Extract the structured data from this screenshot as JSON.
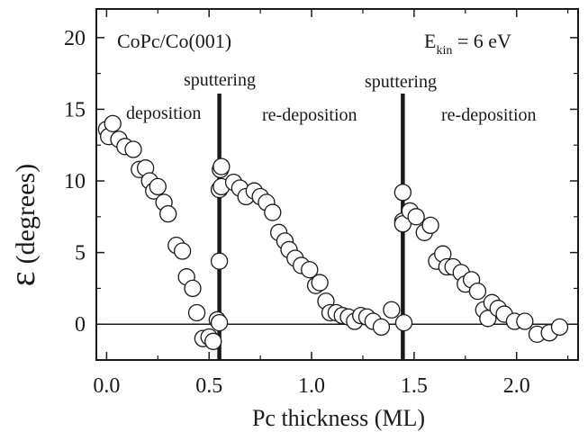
{
  "chart_data": {
    "type": "scatter",
    "title": "",
    "xlabel": "Pc thickness (ML)",
    "ylabel": "ε (degrees)",
    "ylabel_symbol": "ε",
    "ylabel_unit": "(degrees)",
    "xlim": [
      -0.05,
      2.3
    ],
    "ylim": [
      -2.5,
      22
    ],
    "xticks": [
      0.0,
      0.5,
      1.0,
      1.5,
      2.0
    ],
    "xtick_labels": [
      "0.0",
      "0.5",
      "1.0",
      "1.5",
      "2.0"
    ],
    "yticks": [
      0,
      5,
      10,
      15,
      20
    ],
    "ytick_labels": [
      "0",
      "5",
      "10",
      "15",
      "20"
    ],
    "grid": false,
    "colors": {
      "axis": "#1a1a1a",
      "marker_fill": "#ffffff",
      "marker_stroke": "#1a1a1a"
    },
    "annotations": {
      "sample": "CoPc/Co(001)",
      "energy_prefix": "E",
      "energy_sub": "kin",
      "energy_value": " = 6 eV",
      "phase_1": "deposition",
      "sputter_1": "sputtering",
      "phase_2": "re-deposition",
      "sputter_2": "sputtering",
      "phase_3": "re-deposition"
    },
    "reference_line_y": 0,
    "vertical_lines_x": [
      0.55,
      1.445
    ],
    "series": [
      {
        "points": [
          [
            0.0,
            13.6
          ],
          [
            0.01,
            13.1
          ],
          [
            0.03,
            14.0
          ],
          [
            0.06,
            12.9
          ],
          [
            0.09,
            12.4
          ],
          [
            0.13,
            12.2
          ],
          [
            0.16,
            10.8
          ],
          [
            0.19,
            10.9
          ],
          [
            0.21,
            10.0
          ],
          [
            0.23,
            9.3
          ],
          [
            0.25,
            9.6
          ],
          [
            0.28,
            8.5
          ],
          [
            0.3,
            7.7
          ],
          [
            0.34,
            5.5
          ],
          [
            0.37,
            5.1
          ],
          [
            0.39,
            3.3
          ],
          [
            0.42,
            2.5
          ],
          [
            0.44,
            0.8
          ],
          [
            0.47,
            -1.0
          ],
          [
            0.5,
            -0.9
          ],
          [
            0.52,
            -1.2
          ],
          [
            0.54,
            0.3
          ],
          [
            0.55,
            4.4
          ],
          [
            0.55,
            0.1
          ],
          [
            0.55,
            9.4
          ],
          [
            0.555,
            10.8
          ],
          [
            0.56,
            11.0
          ],
          [
            0.56,
            9.6
          ],
          [
            0.62,
            9.9
          ],
          [
            0.65,
            9.5
          ],
          [
            0.68,
            8.9
          ],
          [
            0.72,
            9.3
          ],
          [
            0.75,
            8.9
          ],
          [
            0.78,
            8.5
          ],
          [
            0.81,
            7.8
          ],
          [
            0.84,
            6.4
          ],
          [
            0.87,
            5.8
          ],
          [
            0.89,
            5.2
          ],
          [
            0.92,
            4.6
          ],
          [
            0.95,
            4.1
          ],
          [
            0.99,
            3.8
          ],
          [
            1.02,
            2.7
          ],
          [
            1.04,
            2.9
          ],
          [
            1.07,
            1.6
          ],
          [
            1.09,
            0.8
          ],
          [
            1.12,
            0.8
          ],
          [
            1.15,
            0.6
          ],
          [
            1.18,
            0.5
          ],
          [
            1.21,
            0.2
          ],
          [
            1.24,
            0.6
          ],
          [
            1.27,
            0.5
          ],
          [
            1.3,
            0.2
          ],
          [
            1.34,
            -0.2
          ],
          [
            1.39,
            1.0
          ],
          [
            1.445,
            7.2
          ],
          [
            1.445,
            7.0
          ],
          [
            1.445,
            9.2
          ],
          [
            1.45,
            0.1
          ],
          [
            1.48,
            7.9
          ],
          [
            1.51,
            7.5
          ],
          [
            1.55,
            6.4
          ],
          [
            1.58,
            6.9
          ],
          [
            1.61,
            4.4
          ],
          [
            1.64,
            4.9
          ],
          [
            1.66,
            4.0
          ],
          [
            1.69,
            4.0
          ],
          [
            1.73,
            3.6
          ],
          [
            1.75,
            2.8
          ],
          [
            1.78,
            3.1
          ],
          [
            1.81,
            2.3
          ],
          [
            1.84,
            1.0
          ],
          [
            1.86,
            0.4
          ],
          [
            1.88,
            1.5
          ],
          [
            1.91,
            1.1
          ],
          [
            1.94,
            0.7
          ],
          [
            1.99,
            0.2
          ],
          [
            2.04,
            0.2
          ],
          [
            2.1,
            -0.7
          ],
          [
            2.16,
            -0.6
          ],
          [
            2.21,
            -0.2
          ]
        ]
      }
    ]
  }
}
